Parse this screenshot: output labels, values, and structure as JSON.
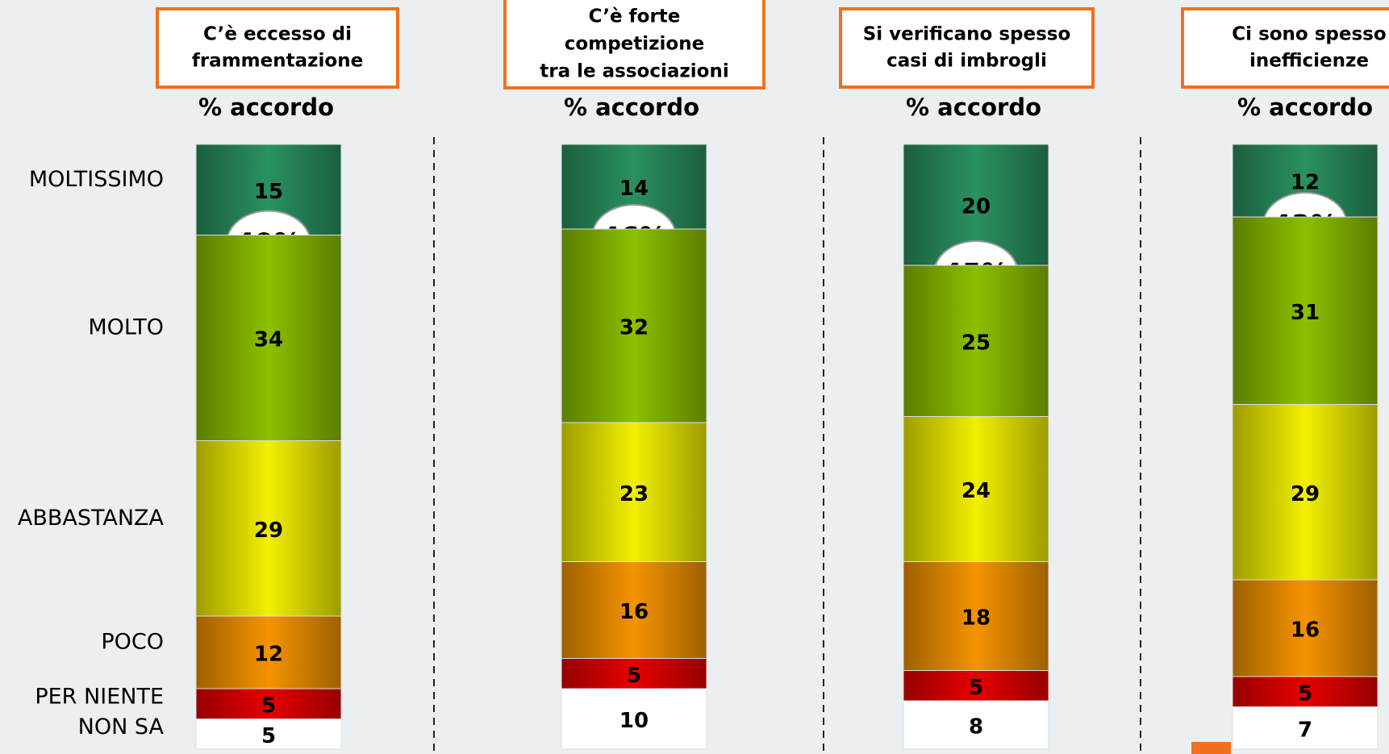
{
  "chart_data": {
    "type": "stacked-bar",
    "categories": [
      [
        "C’è eccesso di",
        "frammentazione"
      ],
      [
        "C’è forte",
        "competizione",
        "tra le associazioni"
      ],
      [
        "Si verificano spesso",
        "casi di imbrogli"
      ],
      [
        "Ci sono spesso",
        "inefficienze"
      ]
    ],
    "subtitle": "% accordo",
    "series": [
      {
        "name": "MOLTISSIMO",
        "color": "#2a9160",
        "values": [
          15,
          14,
          20,
          12
        ]
      },
      {
        "name": "MOLTO",
        "color": "#8cc000",
        "values": [
          34,
          32,
          25,
          31
        ]
      },
      {
        "name": "ABBASTANZA",
        "color": "#f2f000",
        "values": [
          29,
          23,
          24,
          29
        ]
      },
      {
        "name": "POCO",
        "color": "#f59300",
        "values": [
          12,
          16,
          18,
          16
        ]
      },
      {
        "name": "PER NIENTE",
        "color": "#e60000",
        "values": [
          5,
          5,
          5,
          5
        ]
      },
      {
        "name": "NON SA",
        "color": "#ffffff",
        "values": [
          5,
          10,
          8,
          7
        ]
      }
    ],
    "totals": {
      "values": [
        49,
        46,
        45,
        43
      ],
      "value_labels": [
        "49%",
        "46%",
        "45%",
        "43%"
      ]
    },
    "ylim": [
      0,
      100
    ]
  }
}
